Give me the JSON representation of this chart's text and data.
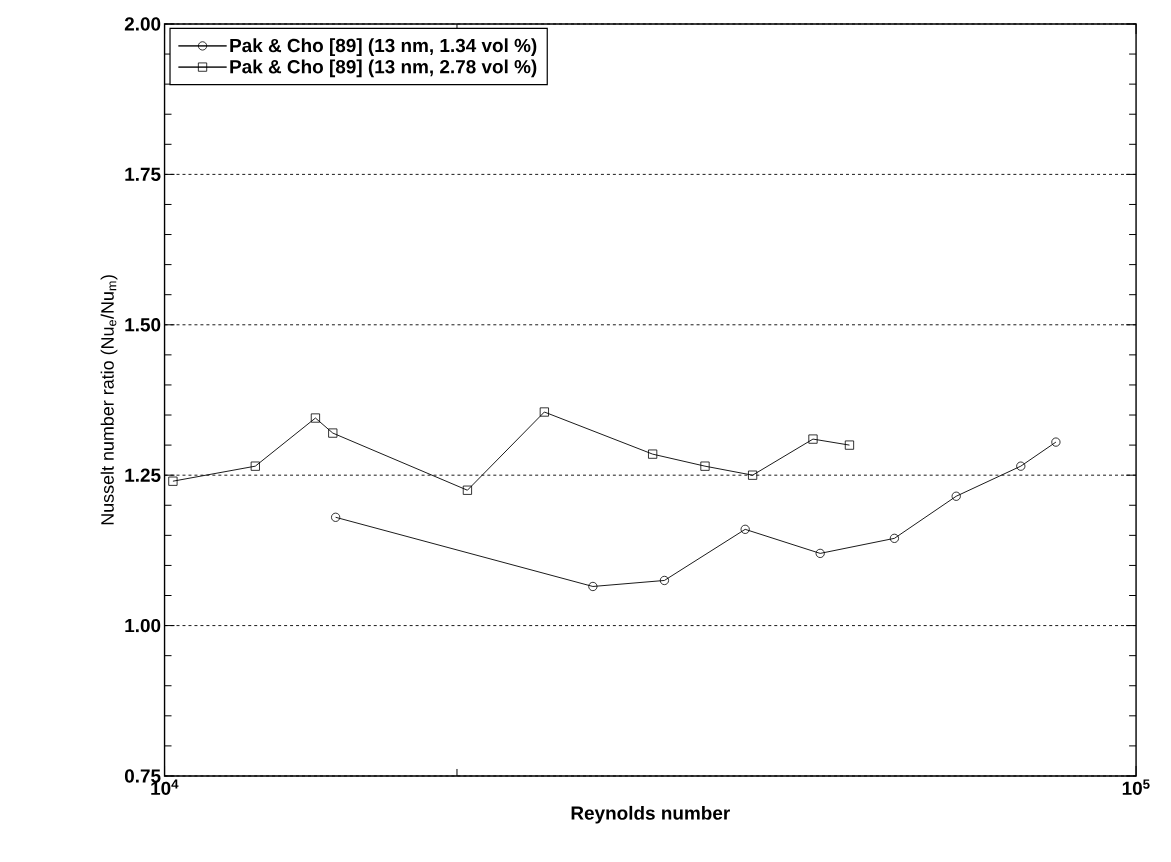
{
  "chart_data": {
    "type": "line",
    "xlabel": "Reynolds number",
    "ylabel": "Nusselt number ratio (Nu$_{e}$/Nu$_{m}$)",
    "log": "x",
    "xlim": [
      10000,
      100000
    ],
    "xticks": [
      {
        "value": 10000,
        "label": "10$^{4}$"
      },
      {
        "value": 20000,
        "label": null
      },
      {
        "value": 100000,
        "label": "10$^{5}$"
      }
    ],
    "ylim": [
      0.75,
      2.0
    ],
    "yticks": [
      {
        "value": 0.75,
        "label": "0.75"
      },
      {
        "value": 0.8,
        "label": null
      },
      {
        "value": 0.85,
        "label": null
      },
      {
        "value": 0.9,
        "label": null
      },
      {
        "value": 0.95,
        "label": null
      },
      {
        "value": 1.0,
        "label": "1.00"
      },
      {
        "value": 1.05,
        "label": null
      },
      {
        "value": 1.1,
        "label": null
      },
      {
        "value": 1.15,
        "label": null
      },
      {
        "value": 1.2,
        "label": null
      },
      {
        "value": 1.25,
        "label": "1.25"
      },
      {
        "value": 1.3,
        "label": null
      },
      {
        "value": 1.35,
        "label": null
      },
      {
        "value": 1.4,
        "label": null
      },
      {
        "value": 1.45,
        "label": null
      },
      {
        "value": 1.5,
        "label": "1.50"
      },
      {
        "value": 1.55,
        "label": null
      },
      {
        "value": 1.6,
        "label": null
      },
      {
        "value": 1.65,
        "label": null
      },
      {
        "value": 1.7,
        "label": null
      },
      {
        "value": 1.75,
        "label": "1.75"
      },
      {
        "value": 1.8,
        "label": null
      },
      {
        "value": 1.85,
        "label": null
      },
      {
        "value": 1.9,
        "label": null
      },
      {
        "value": 1.95,
        "label": null
      },
      {
        "value": 2.0,
        "label": "2.00"
      }
    ],
    "grid": "y",
    "legend": "top left",
    "line_style": "solid",
    "series": [
      {
        "name": "Pak & Cho [89] (13 nm, 1.34 vol %)",
        "color": "#000000",
        "marker": "circle",
        "x": [
          15000,
          27600,
          32700,
          39600,
          47300,
          56400,
          65300,
          76100,
          82700
        ],
        "values": [
          1.18,
          1.065,
          1.075,
          1.16,
          1.12,
          1.145,
          1.215,
          1.265,
          1.305
        ]
      },
      {
        "name": "Pak & Cho [89] (13 nm, 2.78 vol %)",
        "color": "#000000",
        "marker": "square",
        "x": [
          10200,
          12400,
          14300,
          14900,
          20500,
          24600,
          31800,
          36000,
          40300,
          46500,
          50700
        ],
        "values": [
          1.24,
          1.265,
          1.345,
          1.32,
          1.225,
          1.355,
          1.285,
          1.265,
          1.25,
          1.31,
          1.3
        ]
      }
    ]
  }
}
